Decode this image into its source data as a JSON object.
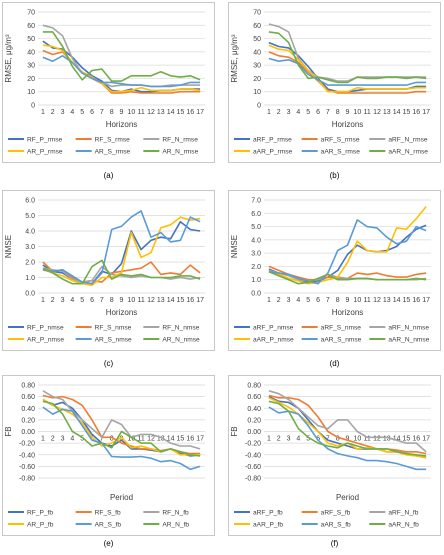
{
  "colors": {
    "frame": "#c8c8c8",
    "grid": "#d9d9d9",
    "text": "#404040",
    "P": "#4472c4",
    "S": "#ed7d31",
    "N": "#a5a5a5",
    "AR_P": "#ffc000",
    "AR_S": "#5b9bd5",
    "AR_N": "#70ad47"
  },
  "chart_data": [
    {
      "id": "a",
      "type": "line",
      "caption": "(a)",
      "ylabel": "RMSE, μg/m³",
      "xlabel": "Horizons",
      "ylim": [
        0,
        70
      ],
      "yticks": [
        0,
        10,
        20,
        30,
        40,
        50,
        60,
        70
      ],
      "ytick_labels": [
        "0",
        "10",
        "20",
        "30",
        "40",
        "50",
        "60",
        "70"
      ],
      "x": [
        1,
        2,
        3,
        4,
        5,
        6,
        7,
        8,
        9,
        10,
        11,
        12,
        13,
        14,
        15,
        16,
        17
      ],
      "x_axis_value": 0,
      "series": [
        {
          "name": "RF_P_rmse",
          "color_key": "P",
          "values": [
            48,
            43,
            42,
            36,
            28,
            22,
            18,
            11,
            10,
            12,
            10,
            10,
            11,
            11,
            12,
            12,
            12
          ]
        },
        {
          "name": "RF_S_rmse",
          "color_key": "S",
          "values": [
            41,
            38,
            40,
            32,
            24,
            20,
            16,
            9,
            9,
            10,
            9,
            9,
            9,
            9,
            10,
            10,
            10
          ]
        },
        {
          "name": "RF_N_rmse",
          "color_key": "N",
          "values": [
            60,
            58,
            52,
            35,
            24,
            20,
            17,
            14,
            15,
            15,
            15,
            14,
            14,
            15,
            15,
            15,
            15
          ]
        },
        {
          "name": "AR_P_rmse",
          "color_key": "AR_P",
          "values": [
            45,
            44,
            41,
            32,
            25,
            21,
            16,
            10,
            10,
            11,
            13,
            11,
            11,
            11,
            12,
            12,
            11
          ]
        },
        {
          "name": "AR_S_rmse",
          "color_key": "AR_S",
          "values": [
            36,
            33,
            37,
            32,
            24,
            20,
            17,
            17,
            16,
            15,
            15,
            14,
            14,
            14,
            15,
            17,
            17
          ]
        },
        {
          "name": "AR_N_rmse",
          "color_key": "AR_N",
          "values": [
            55,
            55,
            44,
            29,
            19,
            26,
            27,
            18,
            18,
            22,
            22,
            22,
            25,
            22,
            21,
            22,
            19
          ]
        }
      ]
    },
    {
      "id": "b",
      "type": "line",
      "caption": "(b)",
      "ylabel": "RMSE, μg/m³",
      "xlabel": "Horizons",
      "ylim": [
        0,
        70
      ],
      "yticks": [
        0,
        10,
        20,
        30,
        40,
        50,
        60,
        70
      ],
      "ytick_labels": [
        "0",
        "10",
        "20",
        "30",
        "40",
        "50",
        "60",
        "70"
      ],
      "x": [
        1,
        2,
        3,
        4,
        5,
        6,
        7,
        8,
        9,
        10,
        11,
        12,
        13,
        14,
        15,
        16,
        17
      ],
      "x_axis_value": 0,
      "series": [
        {
          "name": "aRF_P_rmse",
          "color_key": "P",
          "values": [
            47,
            44,
            43,
            37,
            29,
            20,
            12,
            10,
            10,
            11,
            12,
            12,
            12,
            12,
            12,
            14,
            14
          ]
        },
        {
          "name": "aRF_S_rmse",
          "color_key": "S",
          "values": [
            40,
            37,
            36,
            32,
            25,
            18,
            11,
            9,
            9,
            9,
            9,
            9,
            9,
            9,
            9,
            10,
            10
          ]
        },
        {
          "name": "aRF_N_rmse",
          "color_key": "N",
          "values": [
            61,
            59,
            55,
            35,
            26,
            21,
            20,
            18,
            18,
            21,
            21,
            21,
            21,
            21,
            21,
            21,
            21
          ]
        },
        {
          "name": "aAR_P_rmse",
          "color_key": "AR_P",
          "values": [
            45,
            42,
            41,
            34,
            26,
            19,
            10,
            10,
            10,
            13,
            12,
            12,
            12,
            12,
            12,
            13,
            13
          ]
        },
        {
          "name": "aAR_S_rmse",
          "color_key": "AR_S",
          "values": [
            35,
            33,
            34,
            31,
            23,
            19,
            15,
            15,
            15,
            15,
            15,
            15,
            15,
            15,
            15,
            17,
            17
          ]
        },
        {
          "name": "aAR_N_rmse",
          "color_key": "AR_N",
          "values": [
            55,
            54,
            47,
            30,
            20,
            21,
            19,
            17,
            17,
            21,
            20,
            20,
            21,
            21,
            20,
            21,
            20
          ]
        }
      ]
    },
    {
      "id": "c",
      "type": "line",
      "caption": "(c)",
      "ylabel": "NMSE",
      "xlabel": "Horizons",
      "ylim": [
        0,
        6
      ],
      "yticks": [
        0,
        1,
        2,
        3,
        4,
        5,
        6
      ],
      "ytick_labels": [
        "0.0",
        "1.0",
        "2.0",
        "3.0",
        "4.0",
        "5.0",
        "6.0"
      ],
      "x": [
        1,
        2,
        3,
        4,
        5,
        6,
        7,
        8,
        9,
        10,
        11,
        12,
        13,
        14,
        15,
        16,
        17
      ],
      "x_axis_value": 0,
      "series": [
        {
          "name": "RF_P_nmse",
          "color_key": "P",
          "values": [
            1.8,
            1.4,
            1.3,
            0.9,
            0.7,
            0.6,
            1.4,
            1.2,
            1.9,
            4.0,
            2.8,
            3.4,
            3.6,
            3.5,
            4.6,
            4.1,
            4.0
          ]
        },
        {
          "name": "RF_S_nmse",
          "color_key": "S",
          "values": [
            2.0,
            1.4,
            1.5,
            1.0,
            0.7,
            0.8,
            0.7,
            1.3,
            1.4,
            1.5,
            1.6,
            2.0,
            1.2,
            1.3,
            1.2,
            1.8,
            1.3
          ]
        },
        {
          "name": "RF_N_nmse",
          "color_key": "N",
          "values": [
            1.6,
            1.5,
            1.4,
            0.9,
            0.7,
            0.8,
            1.7,
            1.2,
            1.1,
            1.0,
            1.1,
            1.0,
            1.0,
            0.9,
            1.0,
            0.9,
            1.0
          ]
        },
        {
          "name": "AR_P_nmse",
          "color_key": "AR_P",
          "values": [
            1.5,
            1.3,
            1.1,
            0.8,
            0.6,
            0.5,
            1.0,
            1.0,
            1.3,
            3.9,
            2.3,
            2.6,
            4.2,
            4.4,
            4.9,
            4.7,
            4.8
          ]
        },
        {
          "name": "AR_S_nmse",
          "color_key": "AR_S",
          "values": [
            1.5,
            1.4,
            1.5,
            1.1,
            0.7,
            0.6,
            1.3,
            4.1,
            4.3,
            4.9,
            5.3,
            3.6,
            3.9,
            3.3,
            3.4,
            4.9,
            4.6
          ]
        },
        {
          "name": "AR_N_nmse",
          "color_key": "AR_N",
          "values": [
            1.6,
            1.3,
            0.9,
            0.6,
            0.6,
            1.7,
            2.1,
            0.9,
            1.2,
            1.1,
            1.2,
            1.0,
            1.0,
            1.0,
            1.1,
            1.1,
            0.9
          ]
        }
      ]
    },
    {
      "id": "d",
      "type": "line",
      "caption": "(d)",
      "ylabel": "NMSE",
      "xlabel": "Horizons",
      "ylim": [
        0,
        7
      ],
      "yticks": [
        0,
        1,
        2,
        3,
        4,
        5,
        6,
        7
      ],
      "ytick_labels": [
        "0.0",
        "1.0",
        "2.0",
        "3.0",
        "4.0",
        "5.0",
        "6.0",
        "7.0"
      ],
      "x": [
        1,
        2,
        3,
        4,
        5,
        6,
        7,
        8,
        9,
        10,
        11,
        12,
        13,
        14,
        15,
        16,
        17
      ],
      "x_axis_value": 0,
      "series": [
        {
          "name": "aRF_P_nmse",
          "color_key": "P",
          "values": [
            1.8,
            1.5,
            1.4,
            1.0,
            0.8,
            0.9,
            1.2,
            1.7,
            2.9,
            3.6,
            3.2,
            3.1,
            3.2,
            3.5,
            4.2,
            4.8,
            5.1
          ]
        },
        {
          "name": "aRF_S_nmse",
          "color_key": "S",
          "values": [
            2.0,
            1.7,
            1.4,
            1.2,
            1.0,
            1.0,
            1.2,
            1.1,
            1.1,
            1.5,
            1.4,
            1.5,
            1.3,
            1.2,
            1.2,
            1.4,
            1.5
          ]
        },
        {
          "name": "aRF_N_nmse",
          "color_key": "N",
          "values": [
            1.7,
            1.5,
            1.3,
            1.0,
            0.9,
            1.0,
            1.4,
            1.2,
            1.1,
            1.1,
            1.1,
            1.0,
            1.0,
            1.0,
            1.0,
            1.0,
            1.1
          ]
        },
        {
          "name": "aAR_P_nmse",
          "color_key": "AR_P",
          "values": [
            1.6,
            1.4,
            1.1,
            0.9,
            0.7,
            0.8,
            1.0,
            1.2,
            2.3,
            3.9,
            3.2,
            3.1,
            3.1,
            4.9,
            4.8,
            5.6,
            6.5
          ]
        },
        {
          "name": "aAR_S_nmse",
          "color_key": "AR_S",
          "values": [
            1.6,
            1.5,
            1.4,
            1.1,
            0.9,
            0.7,
            1.5,
            3.2,
            3.6,
            5.5,
            5.0,
            4.9,
            4.2,
            3.7,
            3.9,
            5.0,
            4.7
          ]
        },
        {
          "name": "aAR_N_nmse",
          "color_key": "AR_N",
          "values": [
            1.6,
            1.3,
            1.0,
            0.7,
            0.8,
            1.1,
            1.4,
            1.0,
            1.0,
            1.1,
            1.1,
            1.0,
            1.0,
            1.0,
            1.0,
            1.1,
            1.0
          ]
        }
      ]
    },
    {
      "id": "e",
      "type": "line",
      "caption": "(e)",
      "ylabel": "FB",
      "xlabel": "Period",
      "ylim": [
        -0.8,
        0.8
      ],
      "yticks": [
        -0.8,
        -0.6,
        -0.4,
        -0.2,
        0,
        0.2,
        0.4,
        0.6,
        0.8
      ],
      "ytick_labels": [
        "-0.80",
        "-0.60",
        "-0.40",
        "-0.20",
        "0.00",
        "0.20",
        "0.40",
        "0.60",
        "0.80"
      ],
      "x": [
        1,
        2,
        3,
        4,
        5,
        6,
        7,
        8,
        9,
        10,
        11,
        12,
        13,
        14,
        15,
        16,
        17
      ],
      "x_axis_value": 0,
      "series": [
        {
          "name": "RF_P_fb",
          "color_key": "P",
          "values": [
            0.55,
            0.45,
            0.5,
            0.4,
            0.2,
            -0.05,
            -0.2,
            -0.25,
            -0.15,
            -0.3,
            -0.3,
            -0.32,
            -0.35,
            -0.3,
            -0.38,
            -0.42,
            -0.4
          ]
        },
        {
          "name": "RF_S_fb",
          "color_key": "S",
          "values": [
            0.62,
            0.58,
            0.6,
            0.55,
            0.45,
            0.2,
            -0.1,
            -0.1,
            -0.2,
            -0.25,
            -0.3,
            -0.3,
            -0.33,
            -0.3,
            -0.35,
            -0.38,
            -0.38
          ]
        },
        {
          "name": "RF_N_fb",
          "color_key": "N",
          "values": [
            0.7,
            0.6,
            0.55,
            0.35,
            0.2,
            0.05,
            -0.1,
            0.2,
            0.12,
            -0.1,
            -0.05,
            -0.05,
            -0.1,
            -0.2,
            -0.25,
            -0.25,
            -0.3
          ]
        },
        {
          "name": "AR_P_fb",
          "color_key": "AR_P",
          "values": [
            0.55,
            0.45,
            0.38,
            0.3,
            0.15,
            -0.1,
            -0.25,
            -0.2,
            -0.1,
            -0.28,
            -0.25,
            -0.3,
            -0.35,
            -0.3,
            -0.4,
            -0.4,
            -0.4
          ]
        },
        {
          "name": "AR_S_fb",
          "color_key": "AR_S",
          "values": [
            0.42,
            0.3,
            0.38,
            0.35,
            0.1,
            -0.15,
            -0.2,
            -0.43,
            -0.44,
            -0.44,
            -0.43,
            -0.46,
            -0.52,
            -0.5,
            -0.55,
            -0.65,
            -0.6
          ]
        },
        {
          "name": "AR_N_fb",
          "color_key": "AR_N",
          "values": [
            0.52,
            0.48,
            0.3,
            0.0,
            -0.1,
            -0.25,
            -0.2,
            -0.28,
            0.0,
            -0.1,
            -0.2,
            -0.2,
            -0.35,
            -0.3,
            -0.35,
            -0.4,
            -0.42
          ]
        }
      ]
    },
    {
      "id": "f",
      "type": "line",
      "caption": "(f)",
      "ylabel": "FB",
      "xlabel": "Period",
      "ylim": [
        -0.8,
        0.8
      ],
      "yticks": [
        -0.8,
        -0.6,
        -0.4,
        -0.2,
        0,
        0.2,
        0.4,
        0.6,
        0.8
      ],
      "ytick_labels": [
        "-0.80",
        "-0.60",
        "-0.40",
        "-0.20",
        "0.00",
        "0.20",
        "0.40",
        "0.60",
        "0.80"
      ],
      "x": [
        1,
        2,
        3,
        4,
        5,
        6,
        7,
        8,
        9,
        10,
        11,
        12,
        13,
        14,
        15,
        16,
        17
      ],
      "x_axis_value": 0,
      "series": [
        {
          "name": "aRF_P_fb",
          "color_key": "P",
          "values": [
            0.6,
            0.52,
            0.5,
            0.4,
            0.2,
            0.0,
            -0.15,
            -0.2,
            -0.25,
            -0.3,
            -0.3,
            -0.3,
            -0.35,
            -0.35,
            -0.38,
            -0.42,
            -0.45
          ]
        },
        {
          "name": "aRF_S_fb",
          "color_key": "S",
          "values": [
            0.62,
            0.58,
            0.58,
            0.55,
            0.45,
            0.25,
            0.0,
            -0.1,
            -0.15,
            -0.2,
            -0.25,
            -0.3,
            -0.3,
            -0.32,
            -0.35,
            -0.35,
            -0.38
          ]
        },
        {
          "name": "aRF_N_fb",
          "color_key": "N",
          "values": [
            0.7,
            0.65,
            0.55,
            0.4,
            0.25,
            0.1,
            0.05,
            0.2,
            0.2,
            0.0,
            -0.1,
            -0.1,
            -0.1,
            -0.15,
            -0.2,
            -0.2,
            -0.35
          ]
        },
        {
          "name": "aAR_P_fb",
          "color_key": "AR_P",
          "values": [
            0.58,
            0.5,
            0.42,
            0.3,
            0.15,
            0.0,
            -0.2,
            -0.25,
            -0.2,
            -0.3,
            -0.28,
            -0.3,
            -0.35,
            -0.35,
            -0.4,
            -0.42,
            -0.45
          ]
        },
        {
          "name": "aAR_S_fb",
          "color_key": "AR_S",
          "values": [
            0.42,
            0.32,
            0.35,
            0.3,
            0.1,
            -0.15,
            -0.3,
            -0.38,
            -0.42,
            -0.45,
            -0.5,
            -0.5,
            -0.52,
            -0.55,
            -0.6,
            -0.65,
            -0.65
          ]
        },
        {
          "name": "aAR_N_fb",
          "color_key": "AR_N",
          "values": [
            0.52,
            0.48,
            0.35,
            0.05,
            -0.1,
            -0.2,
            -0.25,
            -0.28,
            -0.2,
            -0.25,
            -0.3,
            -0.3,
            -0.3,
            -0.35,
            -0.38,
            -0.4,
            -0.42
          ]
        }
      ]
    }
  ]
}
